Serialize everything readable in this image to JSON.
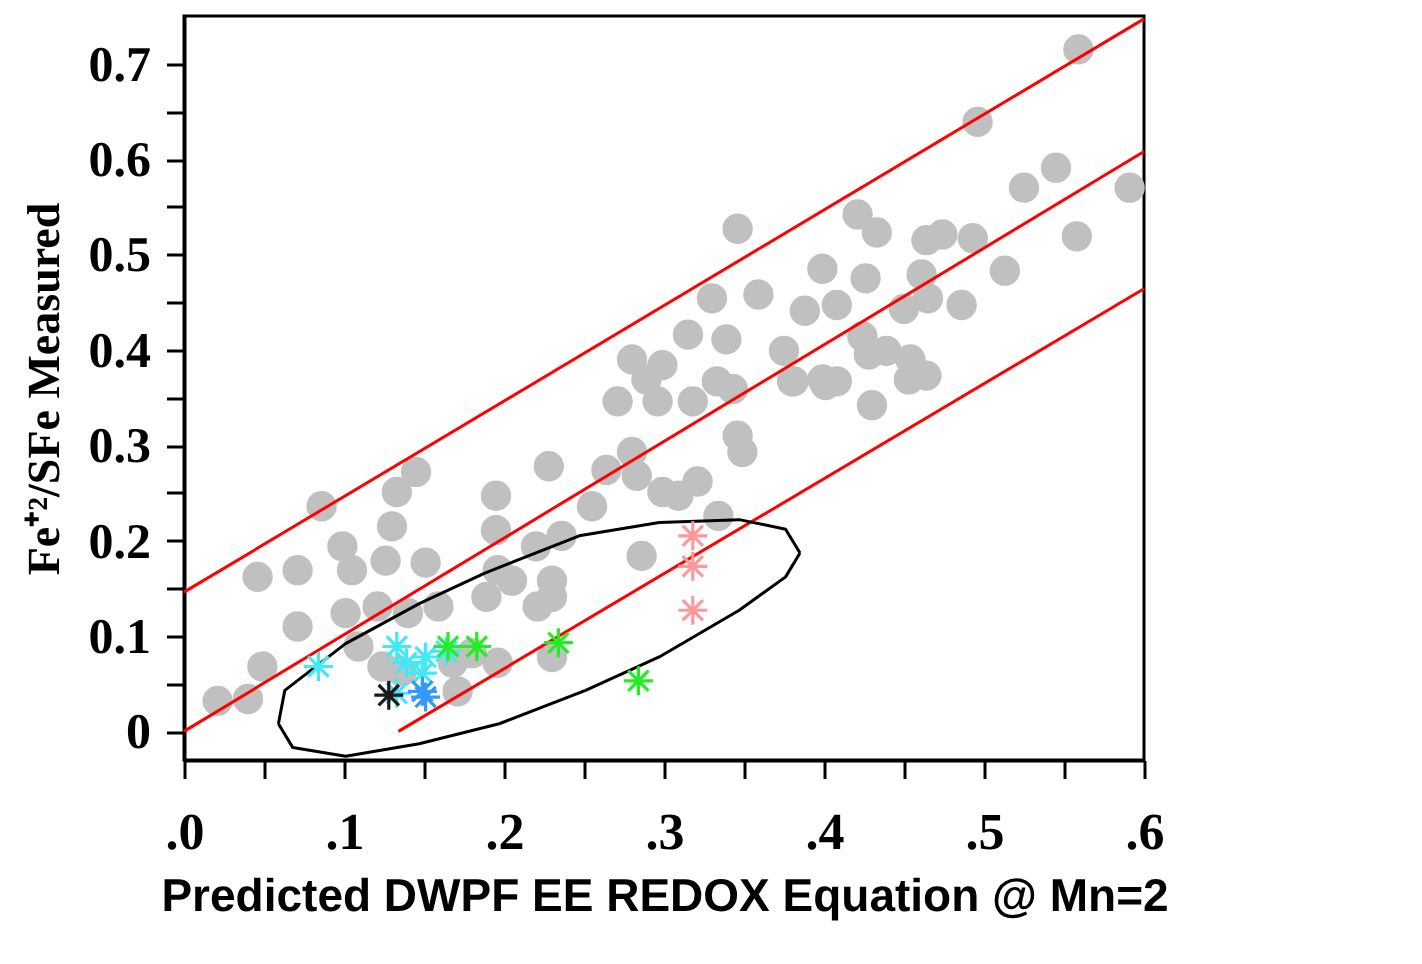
{
  "chart_data": {
    "type": "scatter",
    "xlabel": "Predicted DWPF EE REDOX Equation @ Mn=2",
    "ylabel": "Fe⁺²/SFe Measured",
    "xlim": [
      0,
      0.6
    ],
    "ylim": [
      -0.03,
      0.75
    ],
    "xticks": [
      {
        "value": 0,
        "label": ".0"
      },
      {
        "value": 0.05,
        "label": null
      },
      {
        "value": 0.1,
        "label": ".1"
      },
      {
        "value": 0.15,
        "label": null
      },
      {
        "value": 0.2,
        "label": ".2"
      },
      {
        "value": 0.25,
        "label": null
      },
      {
        "value": 0.3,
        "label": ".3"
      },
      {
        "value": 0.35,
        "label": null
      },
      {
        "value": 0.4,
        "label": ".4"
      },
      {
        "value": 0.45,
        "label": null
      },
      {
        "value": 0.5,
        "label": ".5"
      },
      {
        "value": 0.55,
        "label": null
      },
      {
        "value": 0.6,
        "label": ".6"
      }
    ],
    "yticks": [
      0,
      {
        "value": 0.05,
        "label": null
      },
      0.1,
      {
        "value": 0.15,
        "label": null
      },
      0.2,
      {
        "value": 0.25,
        "label": null
      },
      0.3,
      {
        "value": 0.35,
        "label": null
      },
      0.4,
      {
        "value": 0.45,
        "label": null
      },
      0.5,
      {
        "value": 0.55,
        "label": null
      },
      0.6,
      {
        "value": 0.65,
        "label": null
      },
      0.7
    ],
    "grid": false,
    "series": [
      {
        "marker": "circle",
        "color": "#c0c0c0",
        "x": [
          0.021,
          0.04,
          0.049,
          0.046,
          0.071,
          0.086,
          0.099,
          0.105,
          0.126,
          0.133,
          0.145,
          0.13,
          0.151,
          0.101,
          0.071,
          0.121,
          0.14,
          0.159,
          0.109,
          0.124,
          0.136,
          0.168,
          0.18,
          0.196,
          0.171,
          0.195,
          0.195,
          0.196,
          0.205,
          0.189,
          0.22,
          0.236,
          0.23,
          0.23,
          0.221,
          0.228,
          0.255,
          0.264,
          0.28,
          0.283,
          0.299,
          0.309,
          0.321,
          0.334,
          0.286,
          0.271,
          0.296,
          0.318,
          0.289,
          0.333,
          0.343,
          0.346,
          0.349,
          0.38,
          0.401,
          0.23,
          0.315,
          0.299,
          0.28,
          0.346,
          0.33,
          0.559,
          0.496,
          0.545,
          0.525,
          0.591,
          0.558,
          0.421,
          0.433,
          0.464,
          0.474,
          0.493,
          0.399,
          0.426,
          0.513,
          0.461,
          0.359,
          0.408,
          0.388,
          0.45,
          0.465,
          0.486,
          0.339,
          0.375,
          0.424,
          0.428,
          0.439,
          0.454,
          0.464,
          0.453,
          0.399,
          0.408,
          0.381,
          0.43
        ],
        "values": [
          0.032,
          0.034,
          0.068,
          0.162,
          0.169,
          0.236,
          0.194,
          0.169,
          0.179,
          0.251,
          0.272,
          0.215,
          0.177,
          0.124,
          0.11,
          0.131,
          0.124,
          0.131,
          0.089,
          0.068,
          0.063,
          0.072,
          0.082,
          0.072,
          0.042,
          0.247,
          0.211,
          0.169,
          0.158,
          0.141,
          0.194,
          0.205,
          0.158,
          0.141,
          0.131,
          0.278,
          0.236,
          0.274,
          0.293,
          0.268,
          0.251,
          0.247,
          0.262,
          0.226,
          0.184,
          0.346,
          0.346,
          0.346,
          0.369,
          0.367,
          0.359,
          0.31,
          0.293,
          0.367,
          0.363,
          0.078,
          0.416,
          0.384,
          0.39,
          0.527,
          0.454,
          0.715,
          0.639,
          0.591,
          0.57,
          0.57,
          0.519,
          0.542,
          0.523,
          0.515,
          0.521,
          0.517,
          0.485,
          0.475,
          0.483,
          0.479,
          0.458,
          0.447,
          0.441,
          0.443,
          0.454,
          0.447,
          0.411,
          0.399,
          0.414,
          0.395,
          0.399,
          0.39,
          0.373,
          0.369,
          0.369,
          0.367,
          0.367,
          0.342
        ]
      },
      {
        "type": "line",
        "color": "#ff0000",
        "x": [
          0,
          0.6
        ],
        "values": [
          0.146,
          0.747
        ]
      },
      {
        "type": "line",
        "color": "#ff0000",
        "x": [
          0,
          0.6
        ],
        "values": [
          0,
          0.608
        ]
      },
      {
        "type": "line",
        "color": "#ff0000",
        "x": [
          0.134,
          0.6
        ],
        "values": [
          0,
          0.464
        ]
      },
      {
        "type": "line",
        "color": "#000000",
        "x": [
          0.059,
          0.063,
          0.101,
          0.147,
          0.188,
          0.247,
          0.297,
          0.347,
          0.376,
          0.385
        ],
        "values": [
          0.008,
          0.043,
          0.092,
          0.134,
          0.166,
          0.205,
          0.219,
          0.222,
          0.212,
          0.187
        ]
      },
      {
        "type": "line",
        "color": "#000000",
        "x": [
          0.385,
          0.376,
          0.347,
          0.297,
          0.251,
          0.197,
          0.147,
          0.101,
          0.068,
          0.059
        ],
        "values": [
          0.187,
          0.162,
          0.127,
          0.078,
          0.043,
          0.008,
          -0.013,
          -0.026,
          -0.017,
          0.008
        ]
      },
      {
        "type": "scatter",
        "marker": "cross",
        "color": "#40e8f8",
        "x": [
          0.084,
          0.133,
          0.139,
          0.151,
          0.164,
          0.133,
          0.149
        ],
        "values": [
          0.068,
          0.089,
          0.072,
          0.078,
          0.084,
          0.04,
          0.061
        ]
      },
      {
        "type": "scatter",
        "marker": "cross",
        "color": "#3399ff",
        "x": [
          0.151,
          0.149
        ],
        "values": [
          0.036,
          0.042
        ]
      },
      {
        "type": "scatter",
        "marker": "cross",
        "color": "#1a1a1a",
        "x": [
          0.128
        ],
        "values": [
          0.038
        ]
      },
      {
        "type": "scatter",
        "marker": "cross",
        "color": "#22ee22",
        "x": [
          0.165,
          0.183,
          0.234,
          0.284
        ],
        "values": [
          0.089,
          0.089,
          0.093,
          0.053
        ]
      },
      {
        "type": "scatter",
        "marker": "cross",
        "color": "#ff9999",
        "x": [
          0.318,
          0.318,
          0.318
        ],
        "values": [
          0.205,
          0.173,
          0.127
        ]
      }
    ]
  }
}
